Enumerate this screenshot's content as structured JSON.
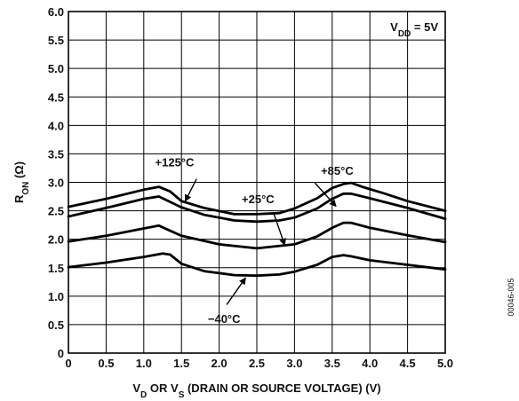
{
  "chart_data": {
    "type": "line",
    "xlabel_parts": [
      {
        "t": "V",
        "sub": false
      },
      {
        "t": "D",
        "sub": true
      },
      {
        "t": " OR V",
        "sub": false
      },
      {
        "t": "S",
        "sub": true
      },
      {
        "t": " (DRAIN OR SOURCE VOLTAGE) (V)",
        "sub": false
      }
    ],
    "ylabel_parts": [
      {
        "t": "R",
        "sub": false
      },
      {
        "t": "ON",
        "sub": true
      },
      {
        "t": " (Ω)",
        "sub": false
      }
    ],
    "xlim": [
      0,
      5.0
    ],
    "ylim": [
      0,
      6.0
    ],
    "x_ticks": [
      "0",
      "0.5",
      "1.0",
      "1.5",
      "2.0",
      "2.5",
      "3.0",
      "3.5",
      "4.0",
      "4.5",
      "5.0"
    ],
    "y_ticks": [
      "0",
      "0.5",
      "1.0",
      "1.5",
      "2.0",
      "2.5",
      "3.0",
      "3.5",
      "4.0",
      "4.5",
      "5.0",
      "5.5",
      "6.0"
    ],
    "grid": true,
    "condition_label_parts": [
      {
        "t": "V",
        "sub": false
      },
      {
        "t": "DD",
        "sub": true
      },
      {
        "t": " = 5V",
        "sub": false
      }
    ],
    "figure_id": "00046-005",
    "series": [
      {
        "name": "+125°C",
        "x": [
          0,
          0.5,
          1.0,
          1.2,
          1.35,
          1.5,
          1.8,
          2.2,
          2.5,
          2.8,
          3.0,
          3.3,
          3.5,
          3.65,
          3.75,
          3.9,
          4.2,
          4.5,
          5.0
        ],
        "y": [
          2.57,
          2.71,
          2.87,
          2.92,
          2.84,
          2.67,
          2.55,
          2.44,
          2.44,
          2.46,
          2.54,
          2.72,
          2.9,
          2.97,
          2.99,
          2.92,
          2.8,
          2.67,
          2.5
        ]
      },
      {
        "name": "+85°C",
        "x": [
          0,
          0.5,
          1.0,
          1.2,
          1.5,
          1.8,
          2.2,
          2.5,
          2.8,
          3.0,
          3.3,
          3.5,
          3.65,
          3.75,
          4.0,
          4.5,
          5.0
        ],
        "y": [
          2.4,
          2.55,
          2.71,
          2.75,
          2.56,
          2.43,
          2.33,
          2.31,
          2.33,
          2.38,
          2.54,
          2.71,
          2.8,
          2.8,
          2.72,
          2.55,
          2.36
        ]
      },
      {
        "name": "+25°C",
        "x": [
          0,
          0.5,
          1.0,
          1.2,
          1.5,
          2.0,
          2.5,
          3.0,
          3.3,
          3.5,
          3.65,
          3.75,
          4.0,
          4.5,
          5.0
        ],
        "y": [
          1.96,
          2.06,
          2.19,
          2.24,
          2.06,
          1.91,
          1.84,
          1.91,
          2.05,
          2.2,
          2.29,
          2.29,
          2.2,
          2.07,
          1.95
        ]
      },
      {
        "name": "−40°C",
        "x": [
          0,
          0.5,
          1.0,
          1.25,
          1.35,
          1.5,
          1.8,
          2.2,
          2.5,
          2.8,
          3.0,
          3.3,
          3.5,
          3.65,
          3.75,
          4.0,
          4.5,
          5.0
        ],
        "y": [
          1.51,
          1.59,
          1.69,
          1.75,
          1.73,
          1.57,
          1.44,
          1.37,
          1.36,
          1.38,
          1.43,
          1.55,
          1.69,
          1.72,
          1.7,
          1.63,
          1.55,
          1.47
        ]
      }
    ],
    "labels": [
      {
        "text": "+125°C",
        "x": 1.15,
        "y": 3.28,
        "to_x": 1.55,
        "to_y": 2.67,
        "from_x": 1.7,
        "from_y": 3.06
      },
      {
        "text": "+85°C",
        "x": 3.35,
        "y": 3.13,
        "to_x": 3.55,
        "to_y": 2.58,
        "from_x": 3.27,
        "from_y": 2.99
      },
      {
        "text": "+25°C",
        "x": 2.3,
        "y": 2.63,
        "to_x": 2.87,
        "to_y": 1.9,
        "from_x": 2.72,
        "from_y": 2.47
      },
      {
        "text": "−40°C",
        "x": 1.85,
        "y": 0.53,
        "to_x": 2.35,
        "to_y": 1.32,
        "from_x": 2.1,
        "from_y": 0.85
      }
    ]
  }
}
